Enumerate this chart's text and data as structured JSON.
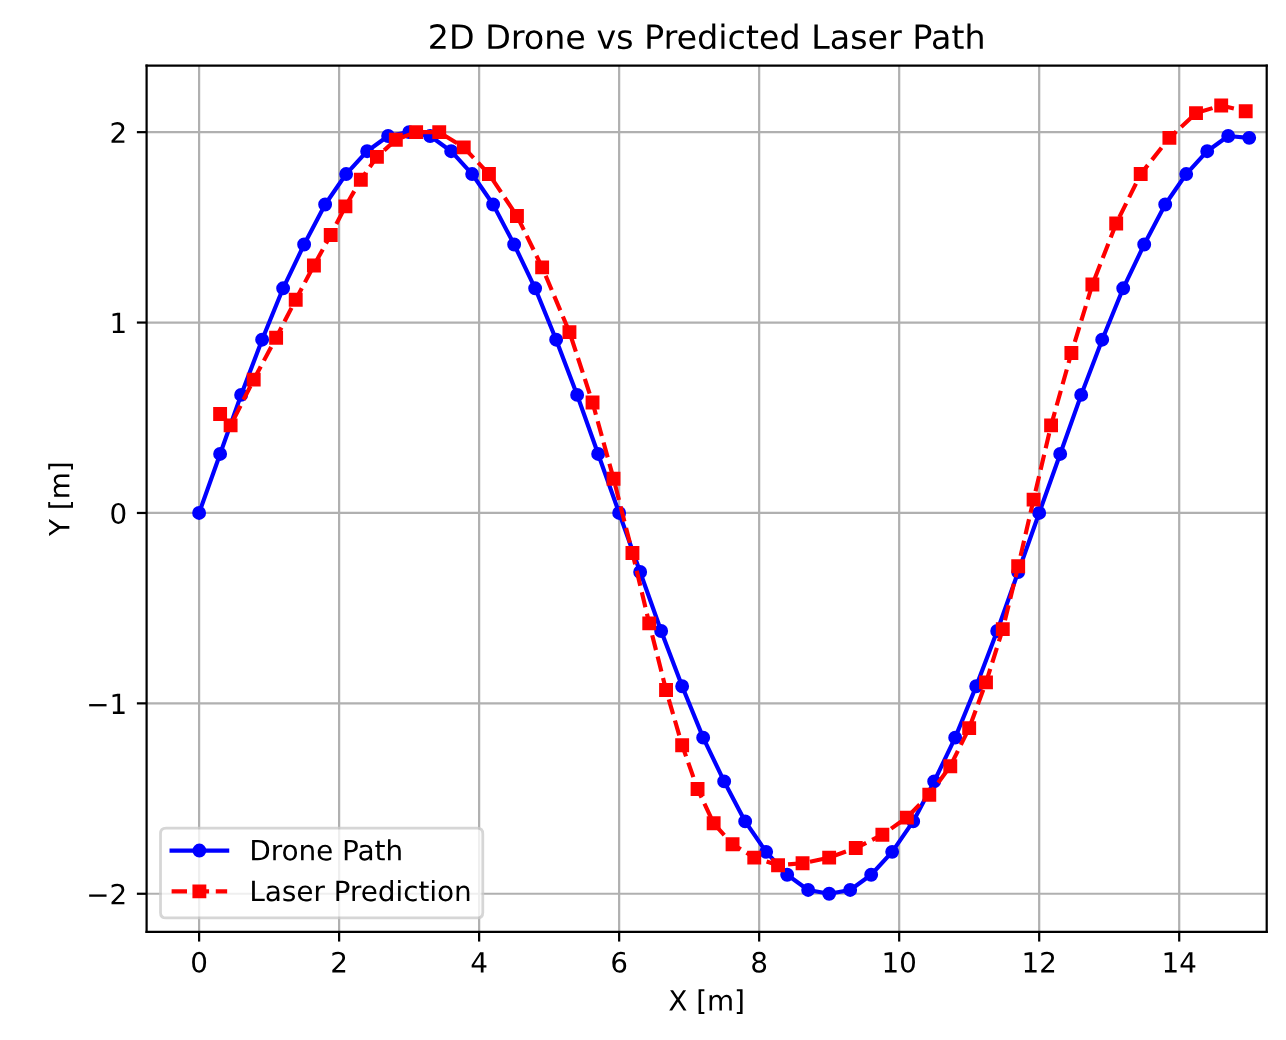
{
  "chart_data": {
    "type": "line",
    "title": "2D Drone vs Predicted Laser Path",
    "xlabel": "X [m]",
    "ylabel": "Y [m]",
    "xlim": [
      -0.75,
      15.25
    ],
    "ylim": [
      -2.2,
      2.35
    ],
    "xticks": [
      0,
      2,
      4,
      6,
      8,
      10,
      12,
      14
    ],
    "yticks": [
      {
        "value": -2,
        "label": "−2"
      },
      {
        "value": -1,
        "label": "−1"
      },
      0,
      1,
      2
    ],
    "grid": true,
    "legend": "bottom left",
    "series": [
      {
        "name": "Drone Path",
        "color": "#0000ff",
        "marker": "circle",
        "line_style": "solid",
        "x": [
          0,
          0.3,
          0.6,
          0.9,
          1.2,
          1.5,
          1.8,
          2.1,
          2.4,
          2.7,
          3.0,
          3.3,
          3.6,
          3.9,
          4.2,
          4.5,
          4.8,
          5.1,
          5.4,
          5.7,
          6.0,
          6.3,
          6.6,
          6.9,
          7.2,
          7.5,
          7.8,
          8.1,
          8.4,
          8.7,
          9.0,
          9.3,
          9.6,
          9.9,
          10.2,
          10.5,
          10.8,
          11.1,
          11.4,
          11.7,
          12.0,
          12.3,
          12.6,
          12.9,
          13.2,
          13.5,
          13.8,
          14.1,
          14.4,
          14.7,
          15.0
        ],
        "values": [
          0,
          0.31,
          0.62,
          0.91,
          1.18,
          1.41,
          1.62,
          1.78,
          1.9,
          1.98,
          2.0,
          1.98,
          1.9,
          1.78,
          1.62,
          1.41,
          1.18,
          0.91,
          0.62,
          0.31,
          0,
          -0.31,
          -0.62,
          -0.91,
          -1.18,
          -1.41,
          -1.62,
          -1.78,
          -1.9,
          -1.98,
          -2.0,
          -1.98,
          -1.9,
          -1.78,
          -1.62,
          -1.41,
          -1.18,
          -0.91,
          -0.62,
          -0.31,
          0,
          0.31,
          0.62,
          0.91,
          1.18,
          1.41,
          1.62,
          1.78,
          1.9,
          1.98,
          1.97
        ]
      },
      {
        "name": "Laser Prediction",
        "color": "#ff0000",
        "marker": "square",
        "line_style": "dashed",
        "x": [
          0.3,
          0.45,
          0.78,
          1.1,
          1.38,
          1.64,
          1.88,
          2.09,
          2.31,
          2.54,
          2.81,
          3.1,
          3.43,
          3.78,
          4.14,
          4.54,
          4.9,
          5.29,
          5.62,
          5.92,
          6.19,
          6.43,
          6.67,
          6.9,
          7.12,
          7.35,
          7.62,
          7.93,
          8.27,
          8.62,
          9.0,
          9.38,
          9.76,
          10.11,
          10.43,
          10.73,
          11.0,
          11.24,
          11.48,
          11.7,
          11.92,
          12.17,
          12.46,
          12.76,
          13.1,
          13.45,
          13.86,
          14.24,
          14.6,
          14.95
        ],
        "values": [
          0.52,
          0.46,
          0.7,
          0.92,
          1.12,
          1.3,
          1.46,
          1.61,
          1.75,
          1.87,
          1.96,
          2.0,
          2.0,
          1.92,
          1.78,
          1.56,
          1.29,
          0.95,
          0.58,
          0.18,
          -0.21,
          -0.58,
          -0.93,
          -1.22,
          -1.45,
          -1.63,
          -1.74,
          -1.81,
          -1.85,
          -1.84,
          -1.81,
          -1.76,
          -1.69,
          -1.6,
          -1.48,
          -1.33,
          -1.13,
          -0.89,
          -0.61,
          -0.28,
          0.07,
          0.46,
          0.84,
          1.2,
          1.52,
          1.78,
          1.97,
          2.1,
          2.14,
          2.11
        ]
      }
    ]
  }
}
